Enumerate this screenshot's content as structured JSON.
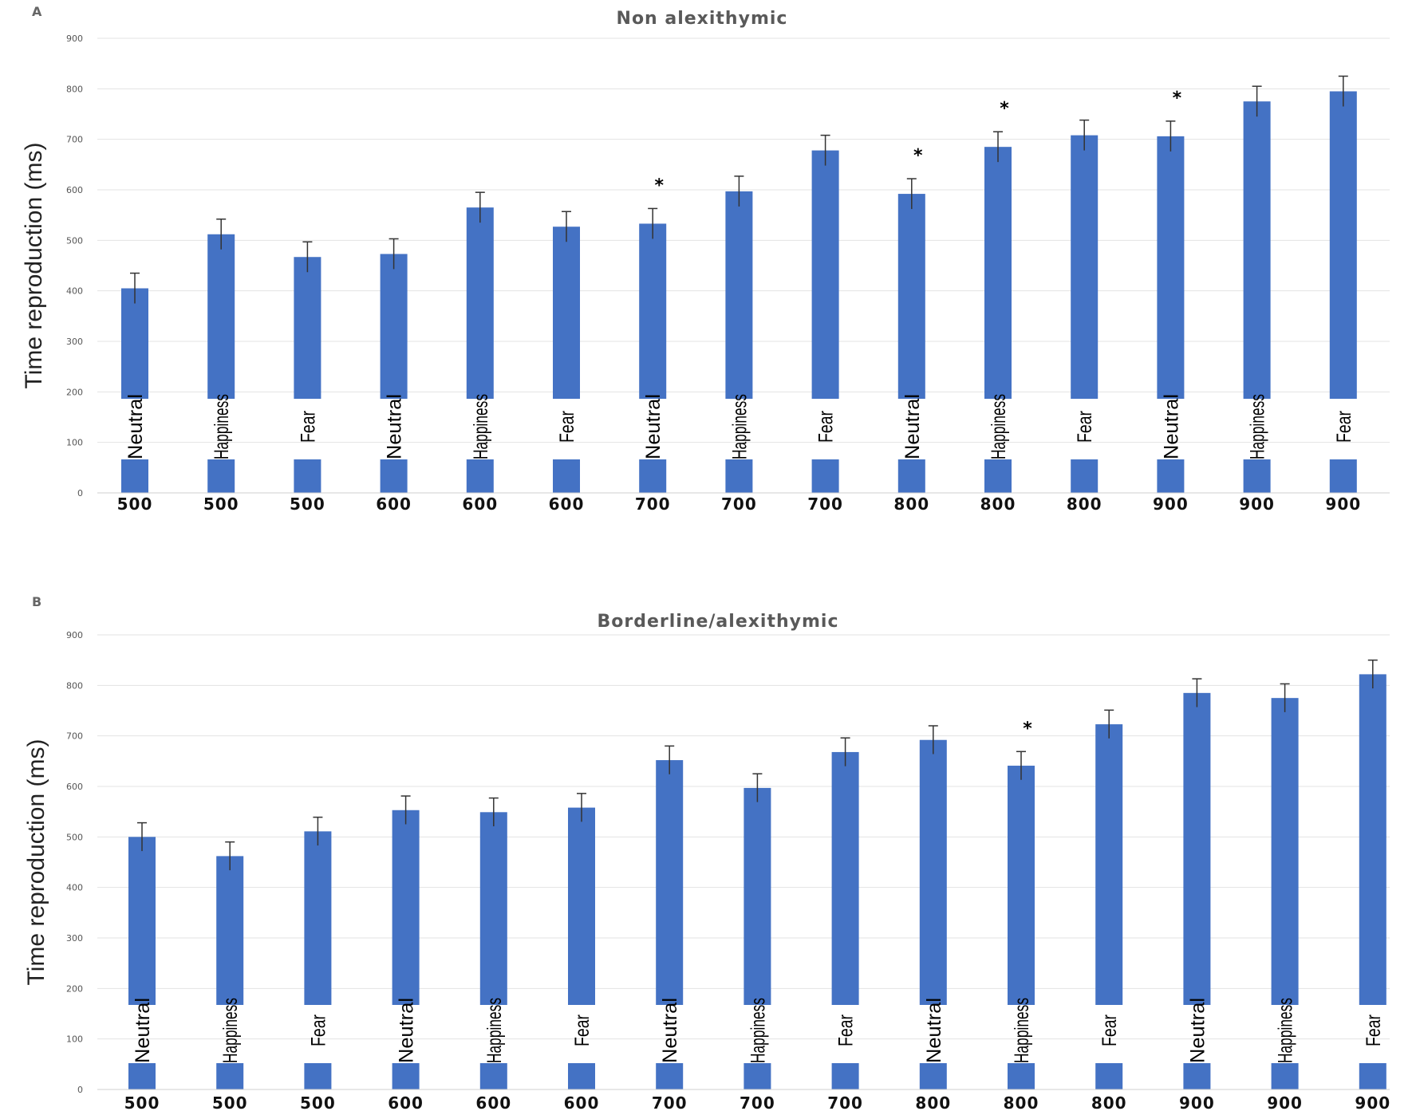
{
  "chart_data": [
    {
      "type": "bar",
      "panel": "A",
      "title": "Non alexithymic",
      "ylabel": "Time reproduction (ms)",
      "ylim": [
        0,
        900
      ],
      "yticks": [
        0,
        100,
        200,
        300,
        400,
        500,
        600,
        700,
        800,
        900
      ],
      "grid": true,
      "bar_color": "#4472C4",
      "categories": [
        "500",
        "500",
        "500",
        "600",
        "600",
        "600",
        "700",
        "700",
        "700",
        "800",
        "800",
        "800",
        "900",
        "900",
        "900"
      ],
      "emotions": [
        "Neutral",
        "Happiness",
        "Fear",
        "Neutral",
        "Happiness",
        "Fear",
        "Neutral",
        "Happiness",
        "Fear",
        "Neutral",
        "Happiness",
        "Fear",
        "Neutral",
        "Happiness",
        "Fear"
      ],
      "values": [
        405,
        512,
        467,
        473,
        565,
        527,
        533,
        597,
        678,
        592,
        685,
        708,
        706,
        775,
        795
      ],
      "error": [
        30,
        30,
        30,
        30,
        30,
        30,
        30,
        30,
        30,
        30,
        30,
        30,
        30,
        30,
        30
      ],
      "significance": [
        "",
        "",
        "",
        "",
        "",
        "",
        "*",
        "",
        "",
        "*",
        "*",
        "",
        "*",
        "",
        ""
      ]
    },
    {
      "type": "bar",
      "panel": "B",
      "title": "Borderline/alexithymic",
      "ylabel": "Time reproduction (ms)",
      "ylim": [
        0,
        900
      ],
      "yticks": [
        0,
        100,
        200,
        300,
        400,
        500,
        600,
        700,
        800,
        900
      ],
      "grid": true,
      "bar_color": "#4472C4",
      "categories": [
        "500",
        "500",
        "500",
        "600",
        "600",
        "600",
        "700",
        "700",
        "700",
        "800",
        "800",
        "800",
        "900",
        "900",
        "900"
      ],
      "emotions": [
        "Neutral",
        "Happiness",
        "Fear",
        "Neutral",
        "Happiness",
        "Fear",
        "Neutral",
        "Happiness",
        "Fear",
        "Neutral",
        "Happiness",
        "Fear",
        "Neutral",
        "Happiness",
        "Fear"
      ],
      "values": [
        500,
        462,
        511,
        553,
        549,
        558,
        652,
        597,
        668,
        692,
        641,
        723,
        785,
        775,
        822
      ],
      "error": [
        28,
        28,
        28,
        28,
        28,
        28,
        28,
        28,
        28,
        28,
        28,
        28,
        28,
        28,
        28
      ],
      "significance": [
        "",
        "",
        "",
        "",
        "",
        "",
        "",
        "",
        "",
        "",
        "*",
        "",
        "",
        "",
        ""
      ]
    }
  ]
}
